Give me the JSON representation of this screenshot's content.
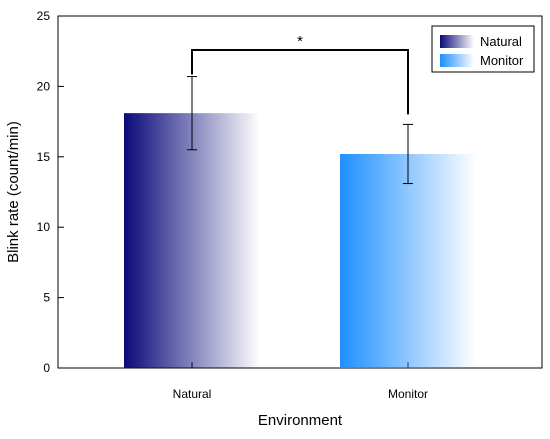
{
  "chart_data": {
    "type": "bar",
    "title": "",
    "xlabel": "Environment",
    "ylabel": "Blink rate (count/min)",
    "ylim": [
      0,
      25
    ],
    "yticks": [
      0,
      5,
      10,
      15,
      20,
      25
    ],
    "categories": [
      "Natural",
      "Monitor"
    ],
    "values": [
      18.1,
      15.2
    ],
    "errors": [
      2.6,
      2.1
    ],
    "colors": [
      "#0a0a7a",
      "#1f8fff"
    ],
    "legend": {
      "placement": "top-right",
      "entries": [
        "Natural",
        "Monitor"
      ]
    },
    "annotation": {
      "label": "*",
      "between": [
        "Natural",
        "Monitor"
      ]
    },
    "grid": false
  }
}
